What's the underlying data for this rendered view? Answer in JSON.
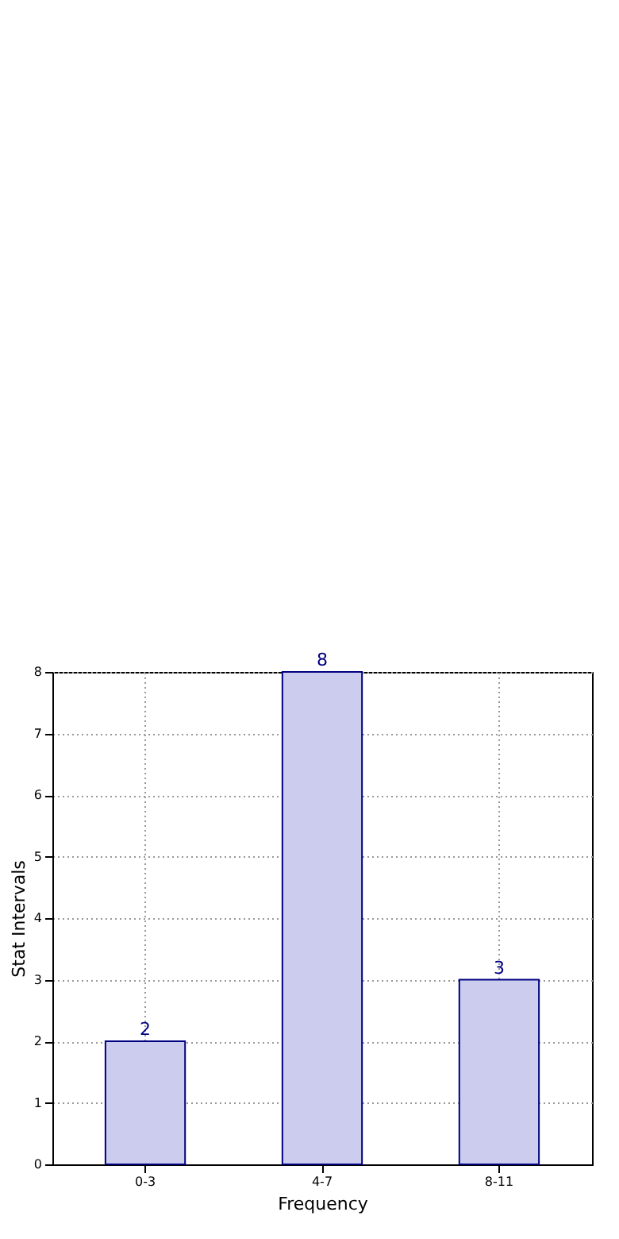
{
  "chart_data": {
    "type": "bar",
    "xlabel": "Frequency",
    "ylabel": "Stat Intervals",
    "categories": [
      "0-3",
      "4-7",
      "8-11"
    ],
    "values": [
      2,
      8,
      3
    ],
    "color": "#ccccee",
    "ylim": [
      0,
      8
    ],
    "yticks": [
      0,
      1,
      2,
      3,
      4,
      5,
      6,
      7,
      8
    ],
    "grid": true,
    "data_labels": true
  }
}
